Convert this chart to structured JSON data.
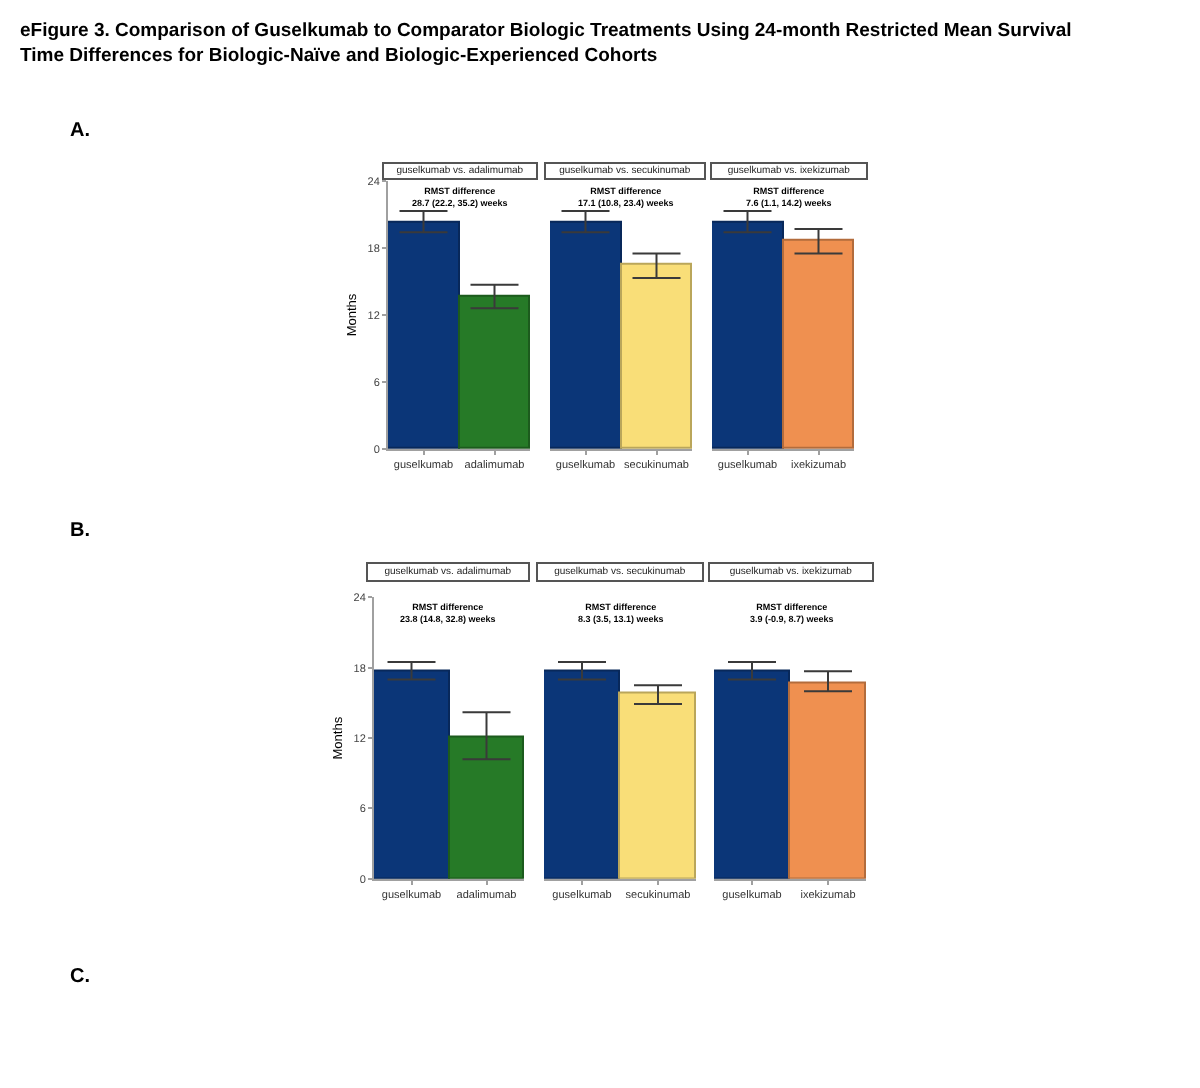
{
  "chart_data": [
    {
      "type": "bar",
      "title": "guselkumab vs. adalimumab",
      "subtitle": "RMST difference\n28.7 (22.2, 35.2) weeks",
      "annotations": [
        "eFigure 3. Comparison of Guselkumab to Comparator Biologic Treatments Using 24-month Restricted Mean Survival Time Differences for Biologic-Naïve and Biologic-Experienced Cohorts",
        "A."
      ],
      "ylabel": "Months",
      "categories": [
        "guselkumab",
        "adalimumab"
      ],
      "values": [
        20.2,
        13.7
      ],
      "colors": [
        "#0b3678",
        "#267a27"
      ],
      "errors": [
        [
          19.4,
          21.3
        ],
        [
          12.6,
          14.7
        ]
      ],
      "ylim": [
        0,
        24
      ],
      "yticks": [
        0,
        6,
        12,
        18,
        24
      ]
    },
    {
      "type": "bar",
      "title": "guselkumab vs. secukinumab",
      "subtitle": "RMST difference\n17.1 (10.8, 23.4) weeks",
      "categories": [
        "guselkumab",
        "secukinumab"
      ],
      "values": [
        20.2,
        16.4
      ],
      "colors": [
        "#0b3678",
        "#f9de78"
      ],
      "errors": [
        [
          19.4,
          21.3
        ],
        [
          15.3,
          17.5
        ]
      ],
      "ylim": [
        0,
        24
      ],
      "yticks": [
        0,
        6,
        12,
        18,
        24
      ],
      "tick_labels": "x"
    },
    {
      "type": "bar",
      "title": "guselkumab vs. ixekizumab",
      "subtitle": "RMST difference\n7.6 (1.1, 14.2) weeks",
      "categories": [
        "guselkumab",
        "ixekizumab"
      ],
      "values": [
        20.2,
        18.6
      ],
      "colors": [
        "#0b3678",
        "#ef9050"
      ],
      "errors": [
        [
          19.4,
          21.3
        ],
        [
          17.5,
          19.7
        ]
      ],
      "ylim": [
        0,
        24
      ],
      "yticks": [
        0,
        6,
        12,
        18,
        24
      ],
      "tick_labels": "x"
    },
    {
      "type": "bar",
      "title": "guselkumab vs. adalimumab",
      "subtitle": "RMST difference\n23.8 (14.8, 32.8) weeks",
      "annotations": [
        "B.",
        "C."
      ],
      "ylabel": "Months",
      "categories": [
        "guselkumab",
        "adalimumab"
      ],
      "values": [
        17.7,
        12.1
      ],
      "colors": [
        "#0b3678",
        "#267a27"
      ],
      "errors": [
        [
          17.0,
          18.5
        ],
        [
          10.2,
          14.2
        ]
      ],
      "ylim": [
        0,
        24
      ],
      "yticks": [
        0,
        6,
        12,
        18,
        24
      ]
    },
    {
      "type": "bar",
      "title": "guselkumab vs. secukinumab",
      "subtitle": "RMST difference\n8.3 (3.5, 13.1) weeks",
      "categories": [
        "guselkumab",
        "secukinumab"
      ],
      "values": [
        17.7,
        15.8
      ],
      "colors": [
        "#0b3678",
        "#f9de78"
      ],
      "errors": [
        [
          17.0,
          18.5
        ],
        [
          14.9,
          16.5
        ]
      ],
      "ylim": [
        0,
        24
      ],
      "yticks": [
        0,
        6,
        12,
        18,
        24
      ],
      "tick_labels": "x"
    },
    {
      "type": "bar",
      "title": "guselkumab vs. ixekizumab",
      "subtitle": "RMST difference\n3.9 (-0.9, 8.7) weeks",
      "categories": [
        "guselkumab",
        "ixekizumab"
      ],
      "values": [
        17.7,
        16.7
      ],
      "colors": [
        "#0b3678",
        "#ef9050"
      ],
      "errors": [
        [
          17.0,
          18.5
        ],
        [
          16.0,
          17.7
        ]
      ],
      "ylim": [
        0,
        24
      ],
      "yticks": [
        0,
        6,
        12,
        18,
        24
      ],
      "tick_labels": "x"
    }
  ]
}
